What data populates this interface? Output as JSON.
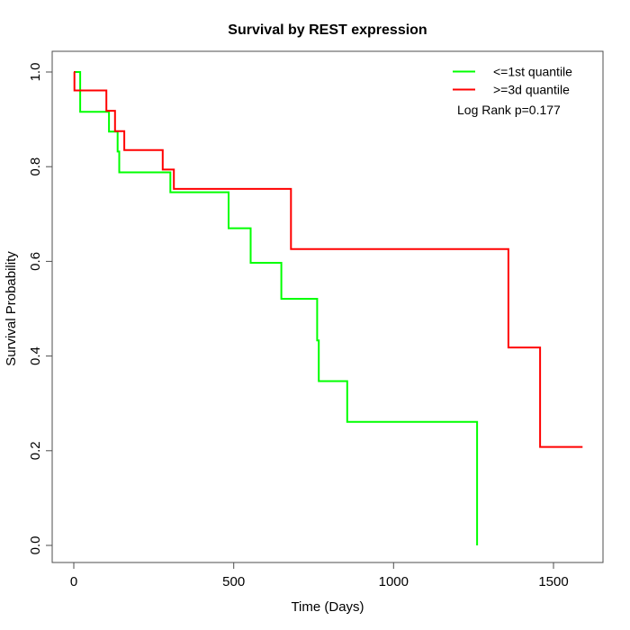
{
  "title": "Survival by REST expression",
  "axes": {
    "xlabel": "Time (Days)",
    "ylabel": "Survival Probability",
    "x_ticks": [
      "0",
      "500",
      "1000",
      "1500"
    ],
    "y_ticks": [
      "0.0",
      "0.2",
      "0.4",
      "0.6",
      "0.8",
      "1.0"
    ]
  },
  "legend": {
    "items": [
      {
        "label": "<=1st quantile",
        "color": "#00ff00"
      },
      {
        "label": ">=3d quantile",
        "color": "#ff0000"
      }
    ],
    "annotation": "Log Rank p=0.177"
  },
  "chart_data": {
    "type": "line",
    "subtype": "kaplan-meier-step",
    "title": "Survival by REST expression",
    "xlabel": "Time (Days)",
    "ylabel": "Survival Probability",
    "xlim": [
      0,
      1600
    ],
    "ylim": [
      0.0,
      1.0
    ],
    "x_tick_values": [
      0,
      500,
      1000,
      1500
    ],
    "y_tick_values": [
      0.0,
      0.2,
      0.4,
      0.6,
      0.8,
      1.0
    ],
    "grid": false,
    "legend_position": "top-right",
    "annotation": "Log Rank p=0.177",
    "series": [
      {
        "name": "<=1st quantile",
        "color": "#00ff00",
        "points": [
          [
            0,
            1.0
          ],
          [
            20,
            0.916
          ],
          [
            110,
            0.874
          ],
          [
            137,
            0.832
          ],
          [
            142,
            0.788
          ],
          [
            302,
            0.746
          ],
          [
            484,
            0.67
          ],
          [
            553,
            0.597
          ],
          [
            649,
            0.521
          ],
          [
            761,
            0.433
          ],
          [
            766,
            0.347
          ],
          [
            855,
            0.261
          ],
          [
            1261,
            0.0
          ]
        ]
      },
      {
        "name": ">=3d quantile",
        "color": "#ff0000",
        "points": [
          [
            0,
            1.0
          ],
          [
            2,
            0.961
          ],
          [
            102,
            0.918
          ],
          [
            129,
            0.875
          ],
          [
            158,
            0.835
          ],
          [
            278,
            0.794
          ],
          [
            313,
            0.753
          ],
          [
            679,
            0.626
          ],
          [
            1359,
            0.418
          ],
          [
            1458,
            0.208
          ],
          [
            1591,
            0.208
          ]
        ]
      }
    ]
  }
}
